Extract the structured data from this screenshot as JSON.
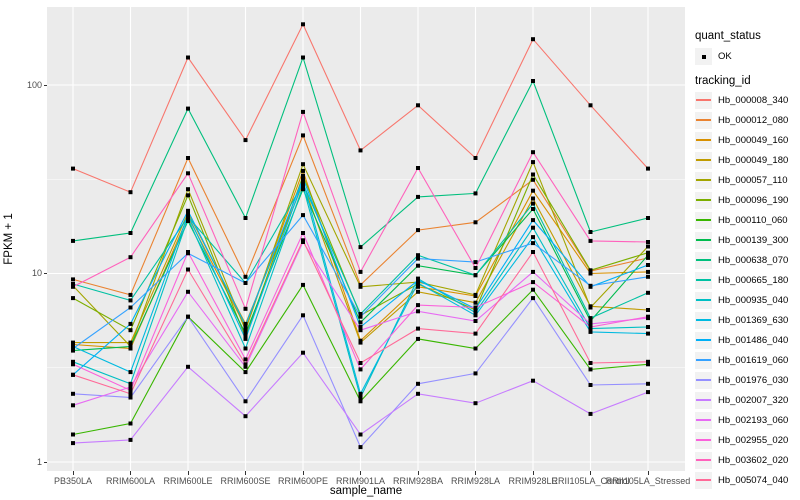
{
  "axes": {
    "x_title": "sample_name",
    "y_title": "FPKM + 1",
    "y_tick_labels": [
      "1",
      "10",
      "100"
    ]
  },
  "legend": {
    "quant_status_title": "quant_status",
    "quant_status_ok_label": "OK",
    "tracking_id_title": "tracking_id"
  },
  "colors": {
    "panel_background": "#EBEBEB",
    "gridline": "#FFFFFF",
    "axis_text": "#4D4D4D",
    "point": "#000000",
    "legend_key_background": "#F2F2F2"
  },
  "chart_data": {
    "type": "line",
    "title": "",
    "xlabel": "sample_name",
    "ylabel": "FPKM + 1",
    "y_scale": "log10",
    "ylim": [
      0.9,
      250
    ],
    "y_tick_values": [
      1,
      10,
      100
    ],
    "y_minor_values": [
      3.1623,
      31.623
    ],
    "grid": true,
    "legend_position": "right",
    "quant_status": "OK",
    "point_shape": "filled-black-square",
    "categories": [
      "PB350LA",
      "RRIM600LA",
      "RRIM600LE",
      "RRIM600SE",
      "RRIM600PE",
      "RRIM901LA",
      "RRIM928BA",
      "RRIM928LA",
      "RRIM928LE",
      "RRII105LA_Control",
      "RRII105LA_Stressed"
    ],
    "series": [
      {
        "name": "Hb_000008_340",
        "color": "#F8766D",
        "values": [
          36,
          27,
          140,
          51,
          210,
          45,
          78,
          41,
          175,
          78,
          36
        ]
      },
      {
        "name": "Hb_000012_080",
        "color": "#EA8331",
        "values": [
          9.3,
          7.7,
          41,
          9.6,
          54,
          8.7,
          17,
          18.7,
          31.4,
          10.3,
          12.1
        ]
      },
      {
        "name": "Hb_000049_160",
        "color": "#D89000",
        "values": [
          4.2,
          4.0,
          20,
          5.2,
          35,
          4.4,
          8.5,
          7.6,
          27.5,
          10.0,
          10.2
        ]
      },
      {
        "name": "Hb_000049_180",
        "color": "#C09B00",
        "values": [
          4.3,
          4.3,
          21,
          5.4,
          30,
          4.3,
          8.0,
          7.0,
          25,
          6.7,
          6.4
        ]
      },
      {
        "name": "Hb_000057_110",
        "color": "#A3A500",
        "values": [
          8.6,
          4.1,
          28,
          5.0,
          38,
          8.5,
          9.0,
          7.7,
          39,
          6.6,
          13.9
        ]
      },
      {
        "name": "Hb_000096_190",
        "color": "#7CAE00",
        "values": [
          7.4,
          5.0,
          26,
          4.6,
          33,
          6.0,
          8.8,
          6.4,
          33.5,
          10.4,
          12.9
        ]
      },
      {
        "name": "Hb_000110_060",
        "color": "#39B600",
        "values": [
          1.4,
          1.6,
          5.9,
          3.0,
          8.7,
          2.1,
          4.5,
          4.0,
          8.2,
          3.1,
          3.3
        ]
      },
      {
        "name": "Hb_000139_300",
        "color": "#00BB4E",
        "values": [
          3.9,
          4.1,
          19,
          4.8,
          28,
          5.5,
          11,
          9.8,
          22,
          5.6,
          12.5
        ]
      },
      {
        "name": "Hb_000638_070",
        "color": "#00BF7D",
        "values": [
          14.9,
          16.4,
          75,
          19.7,
          140,
          13.8,
          25.5,
          26.6,
          105,
          16.6,
          19.7
        ]
      },
      {
        "name": "Hb_000665_180",
        "color": "#00C1A3",
        "values": [
          8.8,
          7.2,
          20,
          8.9,
          30,
          6.1,
          12.5,
          9.8,
          23.5,
          5.8,
          7.9
        ]
      },
      {
        "name": "Hb_000935_040",
        "color": "#00BFC4",
        "values": [
          3.4,
          2.6,
          19.6,
          4.0,
          29,
          2.2,
          9.4,
          6.2,
          17.5,
          5.1,
          5.2
        ]
      },
      {
        "name": "Hb_001369_630",
        "color": "#00BAE0",
        "values": [
          4.1,
          3.0,
          20.5,
          4.5,
          31,
          2.3,
          8.9,
          6.0,
          15.6,
          4.9,
          4.8
        ]
      },
      {
        "name": "Hb_001486_040",
        "color": "#00B0F6",
        "values": [
          2.9,
          5.4,
          21.5,
          5.3,
          32,
          5.2,
          9.2,
          6.5,
          19.2,
          8.5,
          11.1
        ]
      },
      {
        "name": "Hb_001619_060",
        "color": "#35A2FF",
        "values": [
          4.0,
          6.6,
          12.8,
          8.9,
          20.4,
          5.9,
          12.0,
          11.5,
          14.5,
          8.6,
          9.6
        ]
      },
      {
        "name": "Hb_001976_030",
        "color": "#9590FF",
        "values": [
          2.3,
          2.2,
          5.9,
          2.1,
          6.0,
          1.2,
          2.6,
          2.95,
          7.4,
          2.56,
          2.6
        ]
      },
      {
        "name": "Hb_002007_320",
        "color": "#C77CFF",
        "values": [
          1.26,
          1.31,
          3.2,
          1.75,
          3.8,
          1.4,
          2.3,
          2.05,
          2.7,
          1.8,
          2.35
        ]
      },
      {
        "name": "Hb_002193_060",
        "color": "#E76BF3",
        "values": [
          2.0,
          2.5,
          8.0,
          3.2,
          14.7,
          5.0,
          6.3,
          5.6,
          10.2,
          5.4,
          5.8
        ]
      },
      {
        "name": "Hb_002955_020",
        "color": "#FA62DB",
        "values": [
          3.3,
          2.4,
          13,
          3.5,
          16.4,
          3.1,
          6.8,
          6.6,
          9.0,
          5.2,
          5.9
        ]
      },
      {
        "name": "Hb_003602_020",
        "color": "#FF62BC",
        "values": [
          8.5,
          12.2,
          34,
          6.5,
          72,
          10.2,
          36.3,
          10.7,
          44,
          14.9,
          14.7
        ]
      },
      {
        "name": "Hb_005074_040",
        "color": "#FF6A98",
        "values": [
          2.9,
          2.3,
          10.5,
          3.3,
          15,
          3.35,
          5.1,
          4.8,
          13,
          3.35,
          3.4
        ]
      }
    ]
  }
}
